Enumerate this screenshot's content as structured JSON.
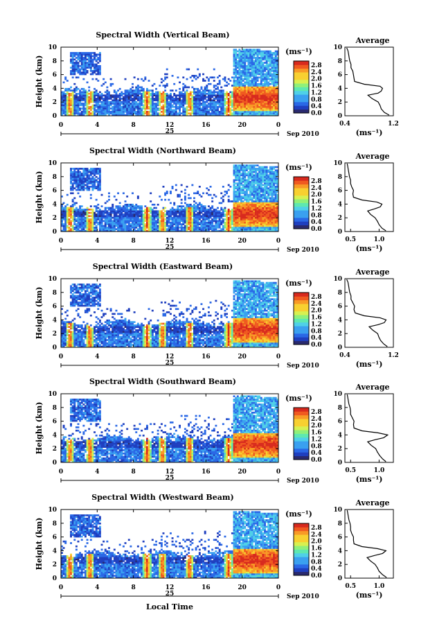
{
  "figure": {
    "xlabel": "Local Time",
    "date_day": "25",
    "date_month_year": "Sep 2010",
    "ylabel": "Height (km)",
    "colorbar_unit": "(ms⁻¹)",
    "avg_title": "Average",
    "avg_xlabel": "(ms⁻¹)"
  },
  "colors": {
    "colormap": [
      "#2a2a6e",
      "#1f3fbf",
      "#2a68e6",
      "#3aa0f0",
      "#4fd0e8",
      "#5ee8b0",
      "#8ff07a",
      "#d8f050",
      "#f8d030",
      "#f89a26",
      "#f05a20",
      "#d82a1e"
    ]
  },
  "chart_data": [
    {
      "type": "heatmap",
      "title": "Spectral Width (Vertical Beam)",
      "x_ticks": [
        "0",
        "4",
        "8",
        "12",
        "16",
        "20",
        "0"
      ],
      "y_ticks": [
        "0",
        "2",
        "4",
        "6",
        "8",
        "10"
      ],
      "xlim": [
        0,
        24
      ],
      "ylim": [
        0,
        10
      ],
      "colorbar_ticks": [
        "0.0",
        "0.4",
        "0.8",
        "1.2",
        "1.6",
        "2.0",
        "2.4",
        "2.8"
      ],
      "colorbar_range": [
        0.0,
        2.8
      ],
      "average_profile": {
        "title": "Average",
        "x_ticks": [
          "0.4",
          "1.2"
        ],
        "xlim": [
          0.4,
          1.2
        ],
        "y_ticks": [
          "0",
          "2",
          "4",
          "6",
          "8",
          "10"
        ],
        "height_km": [
          0.1,
          0.5,
          1,
          1.5,
          2,
          2.5,
          3,
          3.3,
          3.6,
          4,
          4.3,
          4.6,
          5,
          5.5,
          6,
          6.5,
          7,
          7.5,
          8,
          8.5,
          9,
          9.5,
          9.9
        ],
        "value": [
          1.13,
          1.05,
          1.0,
          0.98,
          0.95,
          0.85,
          0.78,
          0.95,
          1.0,
          1.02,
          0.98,
          0.72,
          0.56,
          0.55,
          0.54,
          0.53,
          0.5,
          0.5,
          0.48,
          0.47,
          0.46,
          0.45,
          0.43
        ]
      }
    },
    {
      "type": "heatmap",
      "title": "Spectral Width (Northward Beam)",
      "x_ticks": [
        "0",
        "4",
        "8",
        "12",
        "16",
        "20",
        "0"
      ],
      "y_ticks": [
        "0",
        "2",
        "4",
        "6",
        "8",
        "10"
      ],
      "xlim": [
        0,
        24
      ],
      "ylim": [
        0,
        10
      ],
      "colorbar_ticks": [
        "0.0",
        "0.4",
        "0.8",
        "1.2",
        "1.6",
        "2.0",
        "2.4",
        "2.8"
      ],
      "colorbar_range": [
        0.0,
        2.8
      ],
      "average_profile": {
        "title": "Average",
        "x_ticks": [
          "0.5",
          "1.0"
        ],
        "xlim": [
          0.4,
          1.25
        ],
        "y_ticks": [
          "0",
          "2",
          "4",
          "6",
          "8",
          "10"
        ],
        "height_km": [
          0.1,
          0.5,
          1,
          1.5,
          2,
          2.5,
          3,
          3.3,
          3.6,
          4,
          4.3,
          4.6,
          5,
          5.5,
          6,
          6.5,
          7,
          7.5,
          8,
          8.5,
          9,
          9.5,
          9.9
        ],
        "value": [
          1.12,
          1.05,
          1.0,
          0.97,
          0.93,
          0.85,
          0.8,
          0.92,
          1.02,
          1.05,
          0.96,
          0.7,
          0.55,
          0.54,
          0.55,
          0.52,
          0.5,
          0.5,
          0.48,
          0.47,
          0.46,
          0.45,
          0.44
        ]
      }
    },
    {
      "type": "heatmap",
      "title": "Spectral Width (Eastward Beam)",
      "x_ticks": [
        "0",
        "4",
        "8",
        "12",
        "16",
        "20",
        "0"
      ],
      "y_ticks": [
        "0",
        "2",
        "4",
        "6",
        "8",
        "10"
      ],
      "xlim": [
        0,
        24
      ],
      "ylim": [
        0,
        10
      ],
      "colorbar_ticks": [
        "0.0",
        "0.4",
        "0.8",
        "1.2",
        "1.6",
        "2.0",
        "2.4",
        "2.8"
      ],
      "colorbar_range": [
        0.0,
        2.8
      ],
      "average_profile": {
        "title": "Average",
        "x_ticks": [
          "0.4",
          "1.2"
        ],
        "xlim": [
          0.4,
          1.2
        ],
        "y_ticks": [
          "0",
          "2",
          "4",
          "6",
          "8",
          "10"
        ],
        "height_km": [
          0.1,
          0.5,
          1,
          1.5,
          2,
          2.5,
          3,
          3.3,
          3.6,
          4,
          4.3,
          4.6,
          5,
          5.5,
          6,
          6.5,
          7,
          7.5,
          8,
          8.5,
          9,
          9.5,
          9.9
        ],
        "value": [
          1.1,
          1.04,
          0.99,
          0.96,
          0.94,
          0.86,
          0.8,
          0.95,
          1.05,
          1.08,
          0.98,
          0.72,
          0.57,
          0.55,
          0.56,
          0.53,
          0.5,
          0.5,
          0.48,
          0.47,
          0.46,
          0.45,
          0.43
        ]
      }
    },
    {
      "type": "heatmap",
      "title": "Spectral Width (Southward Beam)",
      "x_ticks": [
        "0",
        "4",
        "8",
        "12",
        "16",
        "20",
        "0"
      ],
      "y_ticks": [
        "0",
        "2",
        "4",
        "6",
        "8",
        "10"
      ],
      "xlim": [
        0,
        24
      ],
      "ylim": [
        0,
        10
      ],
      "colorbar_ticks": [
        "0.0",
        "0.4",
        "0.8",
        "1.2",
        "1.6",
        "2.0",
        "2.4",
        "2.8"
      ],
      "colorbar_range": [
        0.0,
        2.8
      ],
      "average_profile": {
        "title": "Average",
        "x_ticks": [
          "0.5",
          "1.0"
        ],
        "xlim": [
          0.4,
          1.25
        ],
        "y_ticks": [
          "0",
          "2",
          "4",
          "6",
          "8",
          "10"
        ],
        "height_km": [
          0.1,
          0.5,
          1,
          1.5,
          2,
          2.5,
          3,
          3.3,
          3.6,
          4,
          4.3,
          4.6,
          5,
          5.5,
          6,
          6.5,
          7,
          7.5,
          8,
          8.5,
          9,
          9.5,
          9.9
        ],
        "value": [
          1.12,
          1.06,
          1.01,
          0.97,
          0.94,
          0.86,
          0.8,
          0.93,
          1.08,
          1.15,
          0.98,
          0.7,
          0.56,
          0.55,
          0.56,
          0.53,
          0.5,
          0.5,
          0.49,
          0.47,
          0.46,
          0.45,
          0.44
        ]
      }
    },
    {
      "type": "heatmap",
      "title": "Spectral Width (Westward Beam)",
      "x_ticks": [
        "0",
        "4",
        "8",
        "12",
        "16",
        "20",
        "0"
      ],
      "y_ticks": [
        "0",
        "2",
        "4",
        "6",
        "8",
        "10"
      ],
      "xlim": [
        0,
        24
      ],
      "ylim": [
        0,
        10
      ],
      "colorbar_ticks": [
        "0.0",
        "0.4",
        "0.8",
        "1.2",
        "1.6",
        "2.0",
        "2.4",
        "2.8"
      ],
      "colorbar_range": [
        0.0,
        2.8
      ],
      "average_profile": {
        "title": "Average",
        "x_ticks": [
          "0.5",
          "1.0"
        ],
        "xlim": [
          0.4,
          1.25
        ],
        "y_ticks": [
          "0",
          "2",
          "4",
          "6",
          "8",
          "10"
        ],
        "height_km": [
          0.1,
          0.5,
          1,
          1.5,
          2,
          2.5,
          3,
          3.3,
          3.6,
          4,
          4.3,
          4.6,
          5,
          5.5,
          6,
          6.5,
          7,
          7.5,
          8,
          8.5,
          9,
          9.5,
          9.9
        ],
        "value": [
          1.13,
          1.06,
          1.0,
          0.97,
          0.93,
          0.85,
          0.79,
          0.92,
          1.06,
          1.12,
          0.97,
          0.7,
          0.56,
          0.55,
          0.55,
          0.52,
          0.5,
          0.5,
          0.49,
          0.47,
          0.46,
          0.45,
          0.44
        ]
      }
    }
  ]
}
